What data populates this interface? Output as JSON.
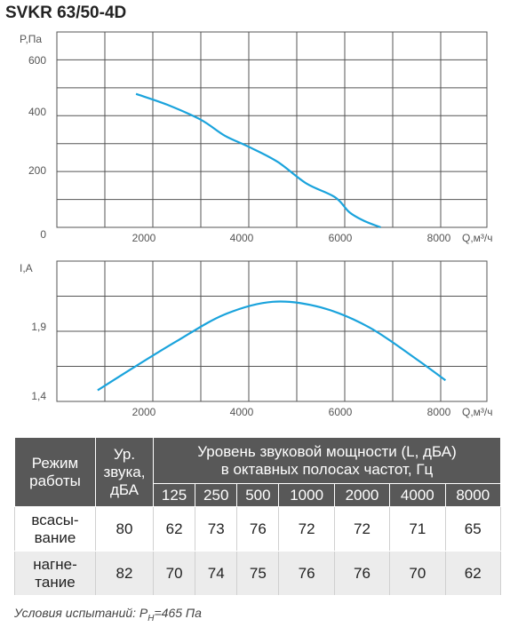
{
  "title": "SVKR 63/50-4D",
  "chart_data": [
    {
      "type": "line",
      "ylabel": "P,Па",
      "xlabel": "Q,м³/ч",
      "x_ticks": [
        "2000",
        "4000",
        "6000",
        "8000"
      ],
      "y_ticks": [
        "0",
        "200",
        "400",
        "600"
      ],
      "xlim": [
        0,
        8000
      ],
      "ylim": [
        0,
        650
      ],
      "color": "#1aa3dc",
      "grid": true,
      "series": [
        {
          "points": [
            [
              1650,
              444
            ],
            [
              2300,
              408
            ],
            [
              3000,
              358
            ],
            [
              3500,
              305
            ],
            [
              4000,
              268
            ],
            [
              4600,
              218
            ],
            [
              5200,
              146
            ],
            [
              5800,
              100
            ],
            [
              6100,
              50
            ],
            [
              6400,
              22
            ],
            [
              6750,
              0
            ]
          ]
        }
      ]
    },
    {
      "type": "line",
      "ylabel": "I,A",
      "xlabel": "Q,м³/ч",
      "x_ticks": [
        "2000",
        "4000",
        "6000",
        "8000"
      ],
      "y_ticks": [
        "1,4",
        "1,9"
      ],
      "xlim": [
        0,
        8000
      ],
      "ylim": [
        1.4,
        2.4
      ],
      "color": "#1aa3dc",
      "grid": true,
      "series": [
        {
          "points": [
            [
              850,
              1.48
            ],
            [
              1500,
              1.62
            ],
            [
              2500,
              1.83
            ],
            [
              3500,
              2.02
            ],
            [
              4500,
              2.11
            ],
            [
              5500,
              2.07
            ],
            [
              6500,
              1.93
            ],
            [
              7500,
              1.7
            ],
            [
              8100,
              1.55
            ]
          ]
        }
      ]
    }
  ],
  "table": {
    "mode_header": "Режим работы",
    "level_header": "Ур. звука, дБА",
    "power_header_1": "Уровень звуковой мощности (L, дБА)",
    "power_header_2": "в октавных полосах частот, Гц",
    "freqs": [
      "125",
      "250",
      "500",
      "1000",
      "2000",
      "4000",
      "8000"
    ],
    "rows": [
      {
        "mode": "всасы-вание",
        "level": "80",
        "values": [
          "62",
          "73",
          "76",
          "72",
          "72",
          "71",
          "65"
        ]
      },
      {
        "mode": "нагне-тание",
        "level": "82",
        "values": [
          "70",
          "74",
          "75",
          "76",
          "76",
          "70",
          "62"
        ]
      }
    ]
  },
  "note": {
    "text": "Условия испытаний: P",
    "sub": "Н",
    "tail": "=465 Па"
  }
}
